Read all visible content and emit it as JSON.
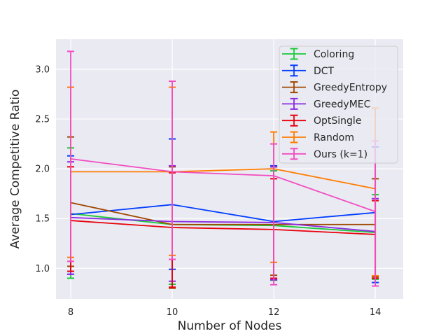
{
  "figure": {
    "background": "#ffffff",
    "plot_background": "#eaeaf2",
    "grid_color": "#ffffff",
    "text_color": "#262626",
    "legend_border_color": "#cccccc",
    "legend_background": "rgba(234,234,242,0.8)"
  },
  "chart_data": {
    "type": "line",
    "title": "",
    "xlabel": "Number of Nodes",
    "ylabel": "Average Competitive Ratio",
    "x": [
      8,
      10,
      12,
      14
    ],
    "xtick_labels": [
      "8",
      "10",
      "12",
      "14"
    ],
    "ytick_labels": [
      "1.0",
      "1.5",
      "2.0",
      "2.5",
      "3.0"
    ],
    "xlim": [
      7.71,
      14.55
    ],
    "ylim": [
      0.6925,
      3.3025
    ],
    "grid": true,
    "error_bars": true,
    "legend_position": "upper right",
    "series": [
      {
        "name": "Coloring",
        "color": "#1ac938",
        "means": [
          1.55,
          1.44,
          1.43,
          1.36
        ],
        "err_lo": [
          0.9,
          0.84,
          0.88,
          0.89
        ],
        "err_hi": [
          2.21,
          1.97,
          1.98,
          1.74
        ]
      },
      {
        "name": "DCT",
        "color": "#023eff",
        "means": [
          1.54,
          1.64,
          1.47,
          1.56
        ],
        "err_lo": [
          0.94,
          0.99,
          0.885,
          0.857
        ],
        "err_hi": [
          2.13,
          2.3,
          2.03,
          2.22
        ]
      },
      {
        "name": "GreedyEntropy",
        "color": "#9f4800",
        "means": [
          1.66,
          1.44,
          1.44,
          1.44
        ],
        "err_lo": [
          1.02,
          0.8,
          0.93,
          0.915
        ],
        "err_hi": [
          2.32,
          2.02,
          2.02,
          1.9
        ]
      },
      {
        "name": "GreedyMEC",
        "color": "#8b2be2",
        "means": [
          1.51,
          1.47,
          1.46,
          1.37
        ],
        "err_lo": [
          0.94,
          0.87,
          0.885,
          0.9
        ],
        "err_hi": [
          2.07,
          2.03,
          2.02,
          1.7
        ]
      },
      {
        "name": "OptSingle",
        "color": "#e8000b",
        "means": [
          1.48,
          1.41,
          1.39,
          1.34
        ],
        "err_lo": [
          0.97,
          0.81,
          0.9,
          0.9
        ],
        "err_hi": [
          2.02,
          1.96,
          1.9,
          1.68
        ]
      },
      {
        "name": "Random",
        "color": "#ff7c00",
        "means": [
          1.97,
          1.97,
          2.0,
          1.8
        ],
        "err_lo": [
          1.11,
          1.13,
          1.06,
          0.925
        ],
        "err_hi": [
          2.82,
          2.82,
          2.37,
          2.61
        ]
      },
      {
        "name": "Ours (k=1)",
        "color": "#f14cc1",
        "means": [
          2.1,
          1.97,
          1.93,
          1.57
        ],
        "err_lo": [
          1.07,
          1.09,
          0.835,
          0.822
        ],
        "err_hi": [
          3.18,
          2.88,
          2.25,
          2.28
        ]
      }
    ]
  }
}
